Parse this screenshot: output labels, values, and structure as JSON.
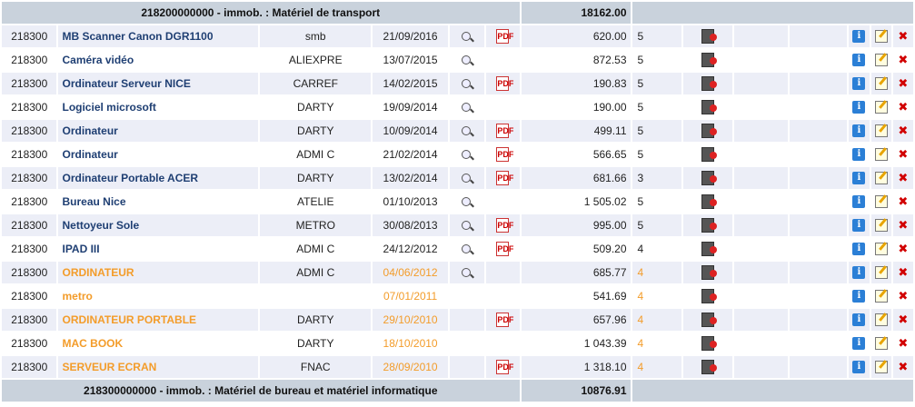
{
  "top_group": {
    "label": "218200000000 - immob. : Matériel de transport",
    "total": "18162.00"
  },
  "bottom_group": {
    "label": "218300000000 - immob. : Matériel de bureau et matériel informatique",
    "total": "10876.91"
  },
  "icons": {
    "view": "magnifier-icon",
    "pdf": "pdf-icon",
    "document": "document-icon",
    "info": "info-icon",
    "edit": "edit-icon",
    "delete": "delete-icon",
    "pdf_glyph": "PDF",
    "info_glyph": "i",
    "delete_glyph": "✖"
  },
  "colors": {
    "name_normal": "#1f3f73",
    "name_old": "#f39c2a",
    "header_bg": "#c9d2dc",
    "alt_row_bg": "#eceef7"
  },
  "rows": [
    {
      "code": "218300",
      "name": "MB Scanner Canon DGR1100",
      "supplier": "smb",
      "date": "21/09/2016",
      "pdf": true,
      "amount": "620.00",
      "duration": "5",
      "old": false
    },
    {
      "code": "218300",
      "name": "Caméra vidéo",
      "supplier": "ALIEXPRE",
      "date": "13/07/2015",
      "pdf": false,
      "amount": "872.53",
      "duration": "5",
      "old": false
    },
    {
      "code": "218300",
      "name": "Ordinateur Serveur NICE",
      "supplier": "CARREF",
      "date": "14/02/2015",
      "pdf": true,
      "amount": "190.83",
      "duration": "5",
      "old": false
    },
    {
      "code": "218300",
      "name": "Logiciel microsoft",
      "supplier": "DARTY",
      "date": "19/09/2014",
      "pdf": false,
      "amount": "190.00",
      "duration": "5",
      "old": false
    },
    {
      "code": "218300",
      "name": "Ordinateur",
      "supplier": "DARTY",
      "date": "10/09/2014",
      "pdf": true,
      "amount": "499.11",
      "duration": "5",
      "old": false
    },
    {
      "code": "218300",
      "name": "Ordinateur",
      "supplier": "ADMI C",
      "date": "21/02/2014",
      "pdf": true,
      "amount": "566.65",
      "duration": "5",
      "old": false
    },
    {
      "code": "218300",
      "name": "Ordinateur Portable ACER",
      "supplier": "DARTY",
      "date": "13/02/2014",
      "pdf": true,
      "amount": "681.66",
      "duration": "3",
      "old": false
    },
    {
      "code": "218300",
      "name": "Bureau Nice",
      "supplier": "ATELIE",
      "date": "01/10/2013",
      "pdf": false,
      "amount": "1 505.02",
      "duration": "5",
      "old": false
    },
    {
      "code": "218300",
      "name": "Nettoyeur Sole",
      "supplier": "METRO",
      "date": "30/08/2013",
      "pdf": true,
      "amount": "995.00",
      "duration": "5",
      "old": false
    },
    {
      "code": "218300",
      "name": "IPAD III",
      "supplier": "ADMI C",
      "date": "24/12/2012",
      "pdf": true,
      "amount": "509.20",
      "duration": "4",
      "old": false
    },
    {
      "code": "218300",
      "name": "ORDINATEUR",
      "supplier": "ADMI C",
      "date": "04/06/2012",
      "pdf": false,
      "amount": "685.77",
      "duration": "4",
      "old": true,
      "view": true
    },
    {
      "code": "218300",
      "name": "metro",
      "supplier": "",
      "date": "07/01/2011",
      "pdf": false,
      "amount": "541.69",
      "duration": "4",
      "old": true,
      "view": false
    },
    {
      "code": "218300",
      "name": "ORDINATEUR PORTABLE",
      "supplier": "DARTY",
      "date": "29/10/2010",
      "pdf": true,
      "amount": "657.96",
      "duration": "4",
      "old": true,
      "view": false
    },
    {
      "code": "218300",
      "name": "MAC BOOK",
      "supplier": "DARTY",
      "date": "18/10/2010",
      "pdf": false,
      "amount": "1 043.39",
      "duration": "4",
      "old": true,
      "view": false
    },
    {
      "code": "218300",
      "name": "SERVEUR ECRAN",
      "supplier": "FNAC",
      "date": "28/09/2010",
      "pdf": true,
      "amount": "1 318.10",
      "duration": "4",
      "old": true,
      "view": false
    }
  ]
}
